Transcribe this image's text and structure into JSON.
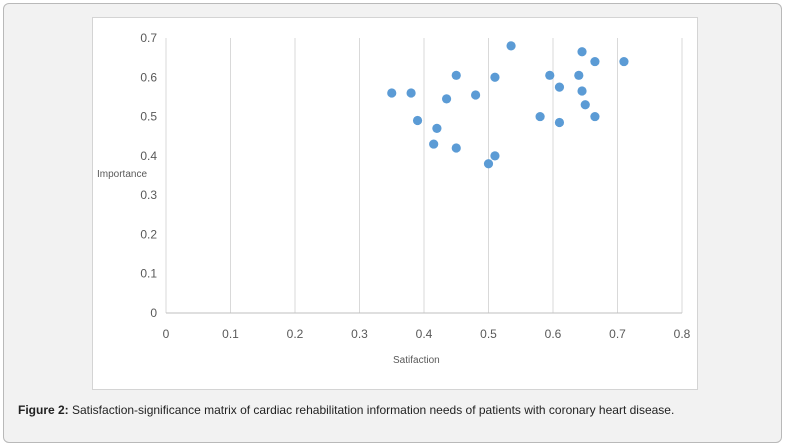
{
  "chart_data": {
    "type": "scatter",
    "xlabel": "Satifaction",
    "ylabel": "Importance",
    "xlim": [
      0,
      0.8
    ],
    "ylim": [
      0,
      0.7
    ],
    "xticks": [
      "0",
      "0.1",
      "0.2",
      "0.3",
      "0.4",
      "0.5",
      "0.6",
      "0.7",
      "0.8"
    ],
    "yticks": [
      "0",
      "0.1",
      "0.2",
      "0.3",
      "0.4",
      "0.5",
      "0.6",
      "0.7"
    ],
    "grid": "vertical",
    "marker_color": "#5b9bd5",
    "points": [
      {
        "x": 0.35,
        "y": 0.56
      },
      {
        "x": 0.38,
        "y": 0.56
      },
      {
        "x": 0.39,
        "y": 0.49
      },
      {
        "x": 0.415,
        "y": 0.43
      },
      {
        "x": 0.42,
        "y": 0.47
      },
      {
        "x": 0.435,
        "y": 0.545
      },
      {
        "x": 0.45,
        "y": 0.605
      },
      {
        "x": 0.45,
        "y": 0.42
      },
      {
        "x": 0.48,
        "y": 0.555
      },
      {
        "x": 0.5,
        "y": 0.38
      },
      {
        "x": 0.51,
        "y": 0.4
      },
      {
        "x": 0.51,
        "y": 0.6
      },
      {
        "x": 0.535,
        "y": 0.68
      },
      {
        "x": 0.58,
        "y": 0.5
      },
      {
        "x": 0.595,
        "y": 0.605
      },
      {
        "x": 0.61,
        "y": 0.485
      },
      {
        "x": 0.61,
        "y": 0.575
      },
      {
        "x": 0.64,
        "y": 0.605
      },
      {
        "x": 0.645,
        "y": 0.665
      },
      {
        "x": 0.645,
        "y": 0.565
      },
      {
        "x": 0.65,
        "y": 0.53
      },
      {
        "x": 0.665,
        "y": 0.64
      },
      {
        "x": 0.665,
        "y": 0.5
      },
      {
        "x": 0.71,
        "y": 0.64
      }
    ]
  },
  "caption": {
    "label": "Figure 2:",
    "text": " Satisfaction-significance matrix of cardiac rehabilitation information needs of patients with coronary heart disease."
  }
}
